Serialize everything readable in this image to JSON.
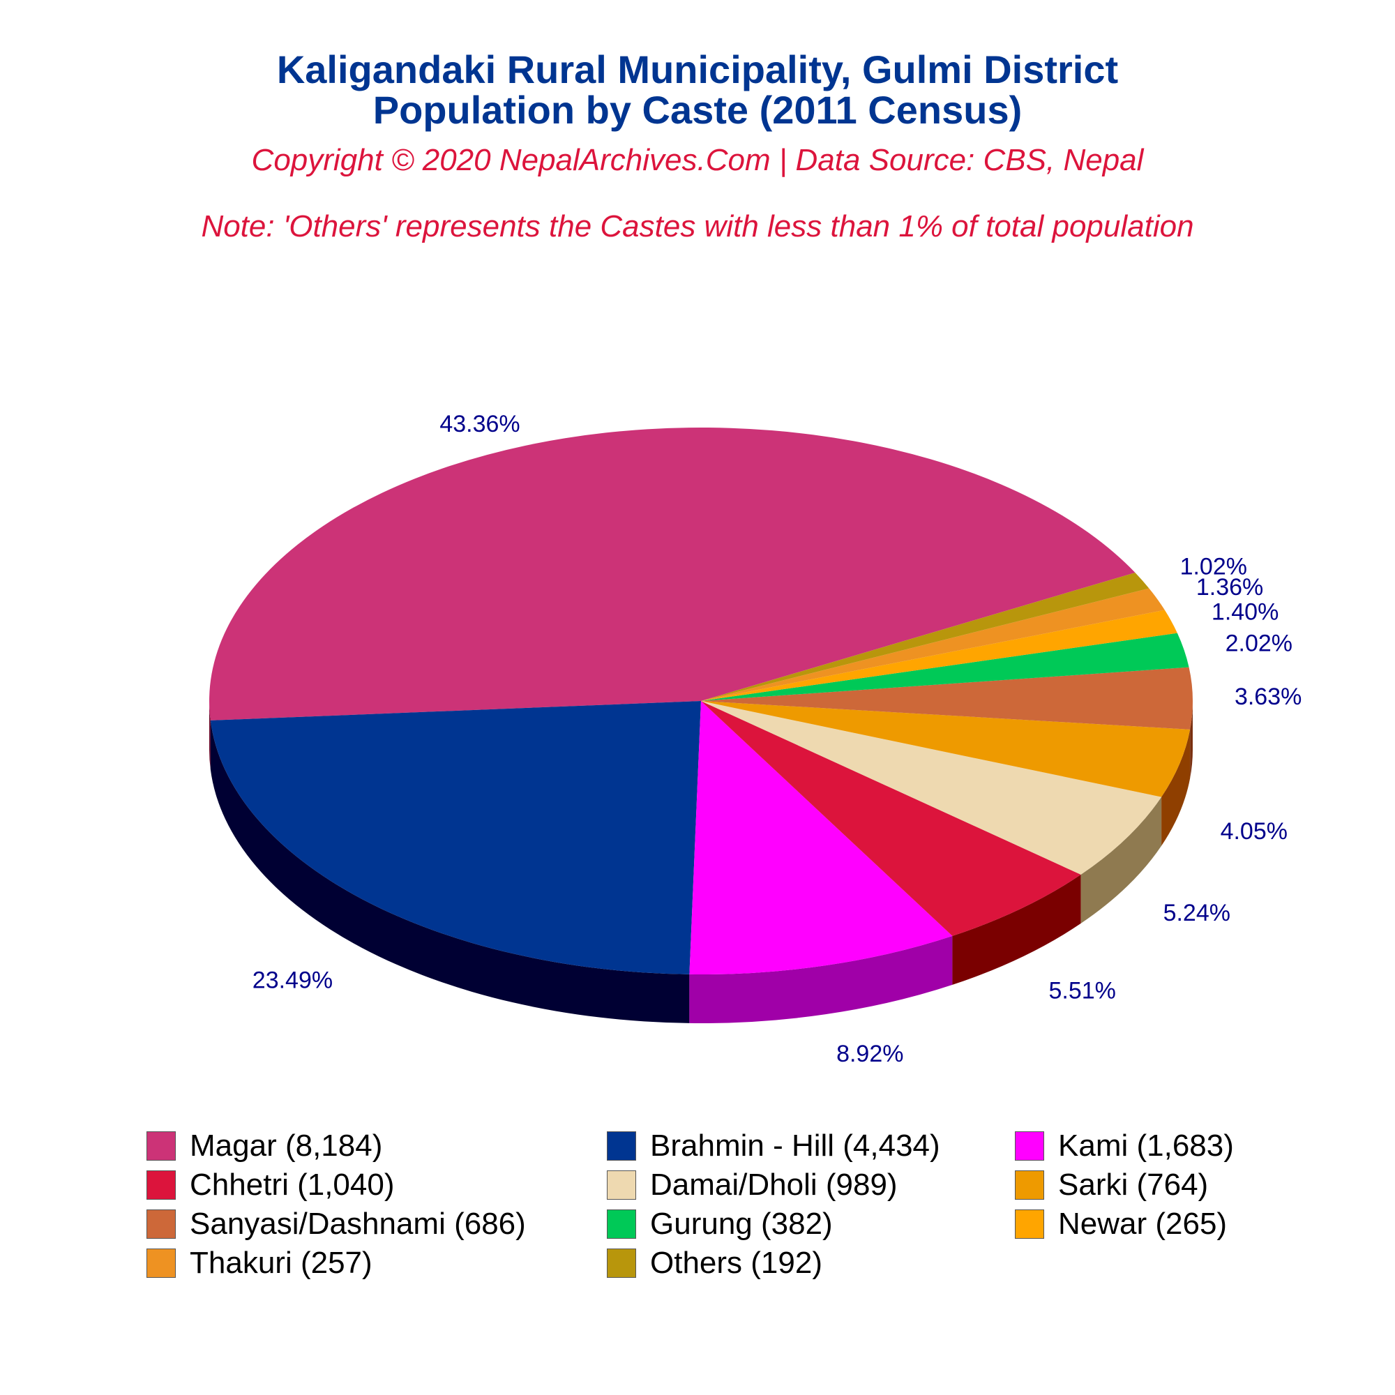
{
  "chart_data": {
    "type": "pie",
    "title_line1": "Kaligandaki Rural Municipality, Gulmi District",
    "title_line2": "Population by Caste (2011 Census)",
    "subtitle_copyright": "Copyright © 2020 NepalArchives.Com | Data Source: CBS, Nepal",
    "subtitle_note": "Note: 'Others' represents the Castes with less than 1% of total population",
    "legend_placement": "bottom",
    "slices": [
      {
        "label": "Magar (8,184)",
        "value": 8184,
        "percent_label": "43.36%",
        "color": "#CC3377",
        "side": "#660022"
      },
      {
        "label": "Brahmin - Hill (4,434)",
        "value": 4434,
        "percent_label": "23.49%",
        "color": "#003591",
        "side": "#000033"
      },
      {
        "label": "Kami (1,683)",
        "value": 1683,
        "percent_label": "8.92%",
        "color": "#FF00FF",
        "side": "#A000A8"
      },
      {
        "label": "Chhetri (1,040)",
        "value": 1040,
        "percent_label": "5.51%",
        "color": "#DC143C",
        "side": "#7A0000"
      },
      {
        "label": "Damai/Dholi (989)",
        "value": 989,
        "percent_label": "5.24%",
        "color": "#EED9B0",
        "side": "#8F7A50"
      },
      {
        "label": "Sarki (764)",
        "value": 764,
        "percent_label": "4.05%",
        "color": "#EE9A00",
        "side": "#8F3F00"
      },
      {
        "label": "Sanyasi/Dashnami (686)",
        "value": 686,
        "percent_label": "3.63%",
        "color": "#CD6839",
        "side": "#7A3010"
      },
      {
        "label": "Gurung (382)",
        "value": 382,
        "percent_label": "2.02%",
        "color": "#00C957",
        "side": "#006020"
      },
      {
        "label": "Newar (265)",
        "value": 265,
        "percent_label": "1.40%",
        "color": "#FFA500",
        "side": "#995500"
      },
      {
        "label": "Thakuri (257)",
        "value": 257,
        "percent_label": "1.36%",
        "color": "#EE9222",
        "side": "#884400"
      },
      {
        "label": "Others (192)",
        "value": 192,
        "percent_label": "1.02%",
        "color": "#B8960C",
        "side": "#6A5500"
      }
    ],
    "colors": {
      "title": "#003591",
      "subtitle": "#DC143C",
      "percent_label": "#00008B"
    }
  }
}
